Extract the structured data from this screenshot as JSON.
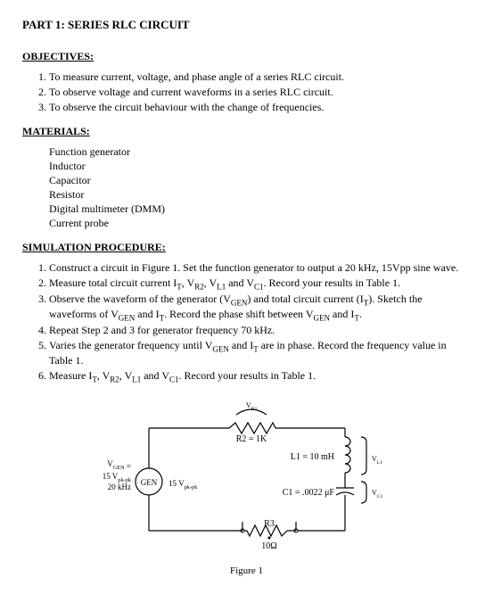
{
  "title": "PART 1: SERIES RLC CIRCUIT",
  "sections": {
    "objectives": {
      "heading": "OBJECTIVES:",
      "items": [
        "To measure current, voltage, and phase angle of a series RLC circuit.",
        "To observe voltage and current waveforms in a series RLC circuit.",
        "To observe the circuit behaviour with the change of frequencies."
      ]
    },
    "materials": {
      "heading": "MATERIALS:",
      "items": [
        "Function generator",
        "Inductor",
        "Capacitor",
        "Resistor",
        "Digital multimeter (DMM)",
        "Current probe"
      ]
    },
    "procedure": {
      "heading": "SIMULATION PROCEDURE:",
      "items": [
        "Construct a circuit in Figure 1. Set the function generator to output a 20 kHz, 15Vpp sine wave.",
        "Measure total circuit current I_T, V_R2, V_L1 and V_C1.  Record your results in Table 1.",
        "Observe the waveform of the generator (V_GEN) and total circuit current (I_T).  Sketch the waveforms of V_GEN and I_T.  Record the phase shift between V_GEN and I_T.",
        "Repeat Step 2 and 3 for generator frequency 70 kHz.",
        "Varies the generator frequency until V_GEN and I_T are in phase. Record the frequency value in Table 1.",
        "Measure I_T, V_R2, V_L1 and V_C1.  Record your results in Table 1."
      ]
    }
  },
  "figure": {
    "caption": "Figure 1",
    "labels": {
      "vr2_tag": "V_R2",
      "r2": "R2 = 1K",
      "l1": "L1 = 10 mH",
      "vl1": "V_L1",
      "c1": "C1 = .0022 μF",
      "vc1": "V_C1",
      "r3": "R3",
      "r3_val": "10Ω",
      "vgen": "V_GEN =",
      "vgen_line2": "15 V_pk-pk",
      "vgen_line3": "20 kHz",
      "gen": "GEN",
      "gen_out": "15 V_pk-pk"
    },
    "style": {
      "stroke": "#000000",
      "stroke_width": 1.2,
      "font_family": "Times New Roman",
      "label_fontsize": 10,
      "small_fontsize": 8,
      "background": "#ffffff"
    }
  }
}
